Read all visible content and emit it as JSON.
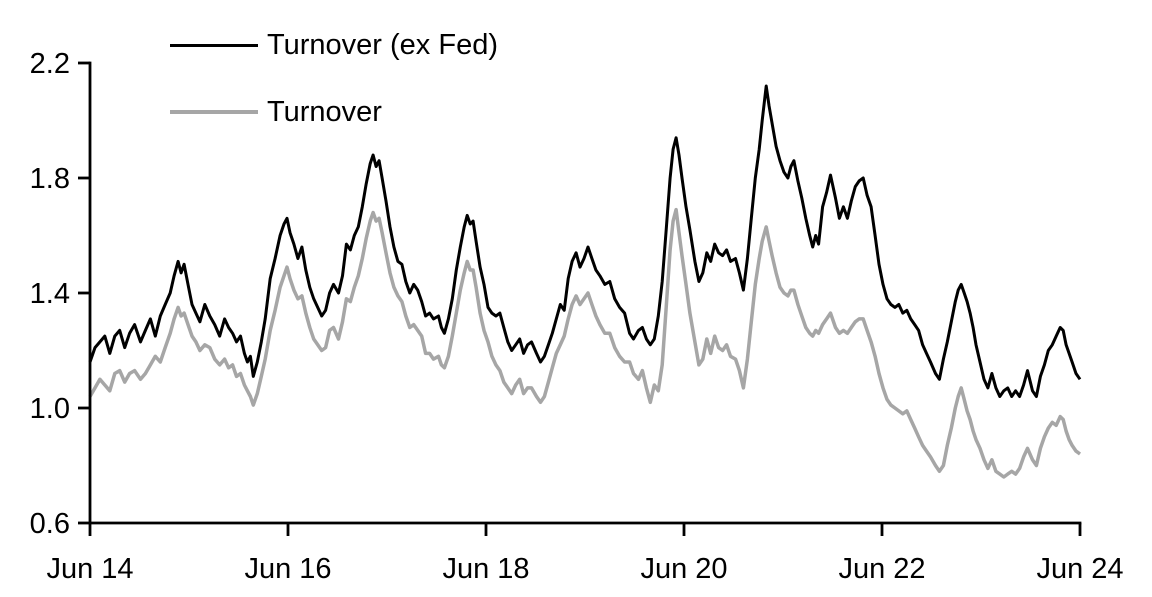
{
  "figure": {
    "background": "#ffffff",
    "text_color": "#000000"
  },
  "legend": {
    "position": "top-left-inside",
    "items": [
      {
        "label": "Turnover (ex Fed)",
        "color": "#000000",
        "line_width": 3
      },
      {
        "label": "Turnover",
        "color": "#a6a6a6",
        "line_width": 4
      }
    ]
  },
  "chart_data": {
    "type": "line",
    "title": "",
    "xlabel": "",
    "ylabel": "",
    "grid": false,
    "legend_position": "top-left-inside",
    "x_unit": "years since Jun 2014",
    "x_axis": {
      "tick_labels": [
        "Jun 14",
        "Jun 16",
        "Jun 18",
        "Jun 20",
        "Jun 22",
        "Jun 24"
      ],
      "tick_positions_years": [
        0,
        2,
        4,
        6,
        8,
        10
      ],
      "range_years": [
        0,
        10
      ]
    },
    "y_axis": {
      "tick_labels": [
        "0.6",
        "1.0",
        "1.4",
        "1.8",
        "2.2"
      ],
      "tick_values": [
        0.6,
        1.0,
        1.4,
        1.8,
        2.2
      ],
      "range": [
        0.6,
        2.2
      ]
    },
    "x": [
      0,
      0.05,
      0.1,
      0.15,
      0.2,
      0.25,
      0.3,
      0.35,
      0.4,
      0.45,
      0.51,
      0.56,
      0.61,
      0.66,
      0.71,
      0.76,
      0.81,
      0.85,
      0.89,
      0.92,
      0.95,
      0.99,
      1.03,
      1.07,
      1.11,
      1.16,
      1.21,
      1.26,
      1.31,
      1.36,
      1.4,
      1.44,
      1.48,
      1.52,
      1.56,
      1.59,
      1.62,
      1.65,
      1.69,
      1.73,
      1.77,
      1.82,
      1.87,
      1.92,
      1.96,
      1.99,
      2.02,
      2.06,
      2.1,
      2.14,
      2.18,
      2.22,
      2.26,
      2.3,
      2.34,
      2.38,
      2.42,
      2.46,
      2.51,
      2.55,
      2.59,
      2.63,
      2.67,
      2.71,
      2.75,
      2.79,
      2.83,
      2.86,
      2.89,
      2.92,
      2.95,
      2.99,
      3.03,
      3.07,
      3.11,
      3.15,
      3.19,
      3.23,
      3.27,
      3.31,
      3.35,
      3.39,
      3.43,
      3.47,
      3.52,
      3.55,
      3.58,
      3.62,
      3.66,
      3.7,
      3.74,
      3.78,
      3.81,
      3.84,
      3.87,
      3.9,
      3.94,
      3.98,
      4.02,
      4.06,
      4.1,
      4.14,
      4.18,
      4.22,
      4.26,
      4.3,
      4.34,
      4.38,
      4.42,
      4.46,
      4.51,
      4.55,
      4.59,
      4.63,
      4.67,
      4.71,
      4.75,
      4.79,
      4.83,
      4.87,
      4.91,
      4.95,
      4.99,
      5.03,
      5.07,
      5.11,
      5.15,
      5.2,
      5.25,
      5.3,
      5.35,
      5.4,
      5.45,
      5.49,
      5.54,
      5.58,
      5.62,
      5.66,
      5.7,
      5.74,
      5.78,
      5.82,
      5.86,
      5.89,
      5.92,
      5.95,
      5.98,
      6.02,
      6.06,
      6.11,
      6.15,
      6.19,
      6.23,
      6.27,
      6.31,
      6.35,
      6.39,
      6.43,
      6.47,
      6.52,
      6.56,
      6.6,
      6.64,
      6.68,
      6.72,
      6.76,
      6.79,
      6.83,
      6.86,
      6.89,
      6.93,
      6.97,
      7.01,
      7.05,
      7.08,
      7.11,
      7.15,
      7.19,
      7.23,
      7.27,
      7.3,
      7.33,
      7.36,
      7.4,
      7.44,
      7.48,
      7.53,
      7.57,
      7.61,
      7.65,
      7.69,
      7.73,
      7.77,
      7.81,
      7.85,
      7.89,
      7.93,
      7.97,
      8.01,
      8.05,
      8.09,
      8.13,
      8.17,
      8.21,
      8.25,
      8.29,
      8.33,
      8.37,
      8.41,
      8.45,
      8.49,
      8.54,
      8.58,
      8.62,
      8.66,
      8.7,
      8.74,
      8.77,
      8.8,
      8.83,
      8.86,
      8.89,
      8.92,
      8.95,
      8.99,
      9.03,
      9.07,
      9.11,
      9.15,
      9.19,
      9.23,
      9.27,
      9.31,
      9.35,
      9.39,
      9.43,
      9.47,
      9.52,
      9.56,
      9.6,
      9.64,
      9.68,
      9.72,
      9.76,
      9.8,
      9.83,
      9.86,
      9.89,
      9.92,
      9.96,
      10
    ],
    "series": [
      {
        "name": "Turnover (ex Fed)",
        "color": "#000000",
        "line_width": 3,
        "values": [
          1.16,
          1.21,
          1.23,
          1.25,
          1.19,
          1.25,
          1.27,
          1.21,
          1.26,
          1.29,
          1.23,
          1.27,
          1.31,
          1.25,
          1.32,
          1.36,
          1.4,
          1.46,
          1.51,
          1.47,
          1.5,
          1.43,
          1.36,
          1.33,
          1.3,
          1.36,
          1.32,
          1.29,
          1.25,
          1.31,
          1.28,
          1.26,
          1.23,
          1.25,
          1.19,
          1.16,
          1.18,
          1.11,
          1.16,
          1.23,
          1.31,
          1.45,
          1.52,
          1.6,
          1.64,
          1.66,
          1.61,
          1.57,
          1.52,
          1.56,
          1.48,
          1.42,
          1.38,
          1.35,
          1.32,
          1.34,
          1.4,
          1.43,
          1.4,
          1.46,
          1.57,
          1.55,
          1.6,
          1.63,
          1.7,
          1.78,
          1.85,
          1.88,
          1.84,
          1.86,
          1.8,
          1.72,
          1.63,
          1.56,
          1.51,
          1.5,
          1.44,
          1.4,
          1.43,
          1.41,
          1.37,
          1.32,
          1.33,
          1.31,
          1.32,
          1.28,
          1.26,
          1.31,
          1.38,
          1.48,
          1.56,
          1.63,
          1.67,
          1.64,
          1.65,
          1.58,
          1.49,
          1.43,
          1.35,
          1.33,
          1.32,
          1.33,
          1.28,
          1.23,
          1.2,
          1.22,
          1.24,
          1.19,
          1.22,
          1.23,
          1.19,
          1.16,
          1.18,
          1.22,
          1.26,
          1.31,
          1.36,
          1.34,
          1.45,
          1.51,
          1.54,
          1.49,
          1.52,
          1.56,
          1.52,
          1.48,
          1.46,
          1.43,
          1.44,
          1.38,
          1.35,
          1.33,
          1.26,
          1.24,
          1.27,
          1.28,
          1.24,
          1.22,
          1.24,
          1.32,
          1.44,
          1.62,
          1.8,
          1.9,
          1.94,
          1.88,
          1.8,
          1.7,
          1.62,
          1.51,
          1.44,
          1.47,
          1.54,
          1.51,
          1.57,
          1.54,
          1.53,
          1.55,
          1.51,
          1.52,
          1.47,
          1.41,
          1.52,
          1.66,
          1.8,
          1.9,
          2.0,
          2.12,
          2.05,
          1.99,
          1.91,
          1.86,
          1.82,
          1.8,
          1.84,
          1.86,
          1.79,
          1.73,
          1.66,
          1.6,
          1.56,
          1.6,
          1.57,
          1.7,
          1.75,
          1.81,
          1.73,
          1.66,
          1.7,
          1.66,
          1.72,
          1.77,
          1.79,
          1.8,
          1.74,
          1.7,
          1.6,
          1.5,
          1.43,
          1.38,
          1.36,
          1.35,
          1.36,
          1.33,
          1.34,
          1.31,
          1.29,
          1.27,
          1.22,
          1.19,
          1.16,
          1.12,
          1.1,
          1.17,
          1.23,
          1.3,
          1.37,
          1.41,
          1.43,
          1.4,
          1.37,
          1.33,
          1.28,
          1.22,
          1.16,
          1.1,
          1.07,
          1.12,
          1.07,
          1.04,
          1.06,
          1.07,
          1.04,
          1.06,
          1.04,
          1.08,
          1.13,
          1.06,
          1.04,
          1.11,
          1.15,
          1.2,
          1.22,
          1.25,
          1.28,
          1.27,
          1.22,
          1.19,
          1.16,
          1.12,
          1.1
        ]
      },
      {
        "name": "Turnover",
        "color": "#a6a6a6",
        "line_width": 4,
        "values": [
          1.04,
          1.07,
          1.1,
          1.08,
          1.06,
          1.12,
          1.13,
          1.09,
          1.12,
          1.13,
          1.1,
          1.12,
          1.15,
          1.18,
          1.16,
          1.21,
          1.26,
          1.31,
          1.35,
          1.32,
          1.33,
          1.29,
          1.25,
          1.23,
          1.2,
          1.22,
          1.21,
          1.17,
          1.15,
          1.17,
          1.14,
          1.15,
          1.11,
          1.12,
          1.08,
          1.06,
          1.04,
          1.01,
          1.05,
          1.11,
          1.17,
          1.27,
          1.34,
          1.42,
          1.46,
          1.49,
          1.45,
          1.41,
          1.38,
          1.39,
          1.33,
          1.28,
          1.24,
          1.22,
          1.2,
          1.21,
          1.27,
          1.28,
          1.24,
          1.3,
          1.38,
          1.37,
          1.42,
          1.46,
          1.52,
          1.59,
          1.65,
          1.68,
          1.65,
          1.66,
          1.61,
          1.54,
          1.47,
          1.42,
          1.39,
          1.37,
          1.32,
          1.28,
          1.29,
          1.27,
          1.25,
          1.19,
          1.19,
          1.17,
          1.18,
          1.15,
          1.14,
          1.18,
          1.25,
          1.33,
          1.41,
          1.47,
          1.51,
          1.48,
          1.48,
          1.42,
          1.33,
          1.27,
          1.23,
          1.18,
          1.15,
          1.13,
          1.09,
          1.07,
          1.05,
          1.08,
          1.1,
          1.05,
          1.07,
          1.07,
          1.04,
          1.02,
          1.04,
          1.09,
          1.14,
          1.19,
          1.22,
          1.25,
          1.31,
          1.36,
          1.39,
          1.36,
          1.38,
          1.4,
          1.36,
          1.32,
          1.29,
          1.26,
          1.26,
          1.21,
          1.18,
          1.16,
          1.16,
          1.12,
          1.1,
          1.13,
          1.07,
          1.02,
          1.08,
          1.06,
          1.15,
          1.35,
          1.55,
          1.65,
          1.69,
          1.61,
          1.53,
          1.43,
          1.33,
          1.23,
          1.15,
          1.17,
          1.24,
          1.19,
          1.25,
          1.21,
          1.2,
          1.22,
          1.18,
          1.17,
          1.13,
          1.07,
          1.17,
          1.3,
          1.43,
          1.52,
          1.58,
          1.63,
          1.58,
          1.53,
          1.47,
          1.42,
          1.4,
          1.39,
          1.41,
          1.41,
          1.36,
          1.32,
          1.28,
          1.26,
          1.25,
          1.27,
          1.26,
          1.29,
          1.31,
          1.33,
          1.28,
          1.26,
          1.27,
          1.26,
          1.28,
          1.3,
          1.31,
          1.31,
          1.27,
          1.23,
          1.18,
          1.12,
          1.07,
          1.03,
          1.01,
          1.0,
          0.99,
          0.98,
          0.99,
          0.96,
          0.93,
          0.9,
          0.87,
          0.85,
          0.83,
          0.8,
          0.78,
          0.8,
          0.87,
          0.93,
          1.0,
          1.04,
          1.07,
          1.03,
          0.99,
          0.96,
          0.92,
          0.89,
          0.86,
          0.82,
          0.79,
          0.82,
          0.78,
          0.77,
          0.76,
          0.77,
          0.78,
          0.77,
          0.79,
          0.83,
          0.86,
          0.82,
          0.8,
          0.86,
          0.9,
          0.93,
          0.95,
          0.94,
          0.97,
          0.96,
          0.92,
          0.89,
          0.87,
          0.85,
          0.84
        ]
      }
    ]
  }
}
